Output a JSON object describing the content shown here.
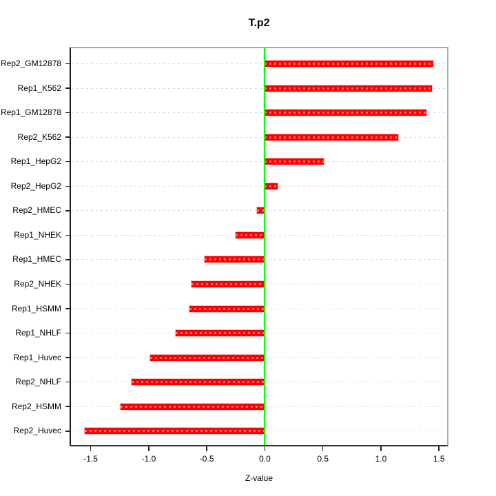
{
  "page": {
    "background": "#ffffff"
  },
  "chart_data": {
    "type": "bar",
    "orientation": "horizontal",
    "title": "T.p2",
    "xlabel": "Z-value",
    "ylabel": "",
    "legend": "none",
    "grid": "dashed-horizontal-row-lines",
    "categories": [
      "Rep2_GM12878",
      "Rep1_K562",
      "Rep1_GM12878",
      "Rep2_K562",
      "Rep1_HepG2",
      "Rep2_HepG2",
      "Rep2_HMEC",
      "Rep1_NHEK",
      "Rep1_HMEC",
      "Rep2_NHEK",
      "Rep1_HSMM",
      "Rep1_NHLF",
      "Rep1_Huvec",
      "Rep2_NHLF",
      "Rep2_HSMM",
      "Rep2_Huvec"
    ],
    "values": [
      1.45,
      1.44,
      1.39,
      1.15,
      0.51,
      0.11,
      -0.07,
      -0.25,
      -0.52,
      -0.63,
      -0.65,
      -0.77,
      -0.99,
      -1.15,
      -1.24,
      -1.55
    ],
    "xlim": [
      -1.67,
      1.57
    ],
    "xticks": [
      "-1.5",
      "-1.0",
      "-0.5",
      "0.0",
      "0.5",
      "1.0",
      "1.5"
    ],
    "zero_line_x": 0,
    "colors": {
      "bar": "#fe0000",
      "bar_dash": "#ff6e6e",
      "bar_halo": "#ffbcbc",
      "grid": "#d9d9d9",
      "zero_line": "#00ff00",
      "frame": "#a9a9a9",
      "axis": "#1b1b1b"
    }
  }
}
